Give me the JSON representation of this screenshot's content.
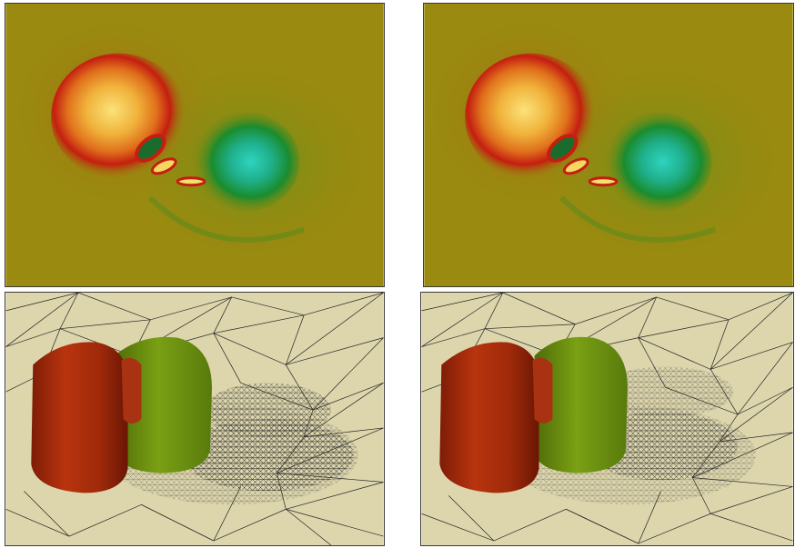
{
  "figure": {
    "panels": [
      {
        "id": "top-left",
        "kind": "colormap-field"
      },
      {
        "id": "top-right",
        "kind": "colormap-field"
      },
      {
        "id": "bottom-left",
        "kind": "mesh-isosurface"
      },
      {
        "id": "bottom-right",
        "kind": "mesh-isosurface"
      }
    ],
    "colors": {
      "background_field": "#9a8a10",
      "hot_core": "#f4c84a",
      "hot_ring": "#c41e10",
      "cool_core": "#27c9b0",
      "cool_ring": "#1a8c2e",
      "mesh_background": "#ddd6ad",
      "mesh_lines": "#222222",
      "surface_red": "#a82a0c",
      "surface_green": "#6c9212"
    }
  }
}
